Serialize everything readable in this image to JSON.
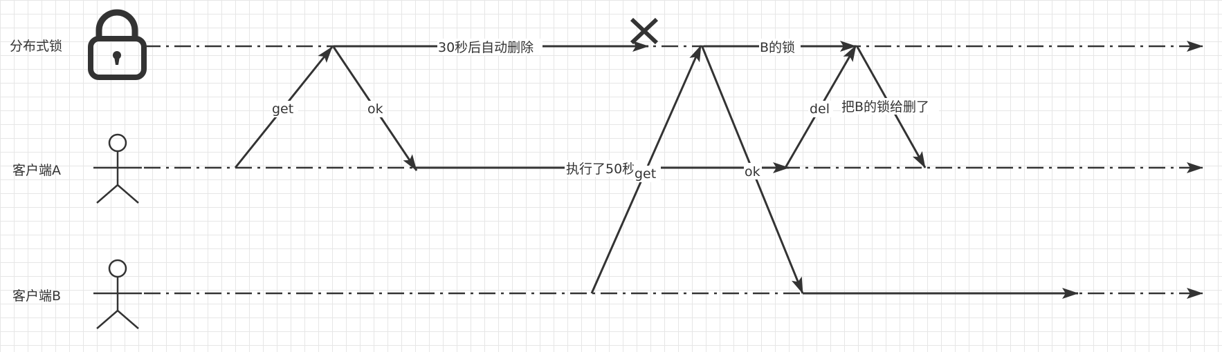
{
  "lanes": {
    "lock": "分布式锁",
    "client_a": "客户端A",
    "client_b": "客户端B"
  },
  "messages": {
    "a_get": "get",
    "a_ok": "ok",
    "expire": "30秒后自动删除",
    "exec": "执行了50秒",
    "b_get": "get",
    "b_ok": "ok",
    "b_lock": "B的锁",
    "a_del": "del",
    "del_b_lock": "把B的锁给删了"
  },
  "icons": {
    "lock": "padlock-icon",
    "actor": "stick-figure-icon",
    "expired": "cross-icon"
  },
  "colors": {
    "line": "#333333",
    "grid": "#e6e6e6",
    "background": "#ffffff"
  }
}
